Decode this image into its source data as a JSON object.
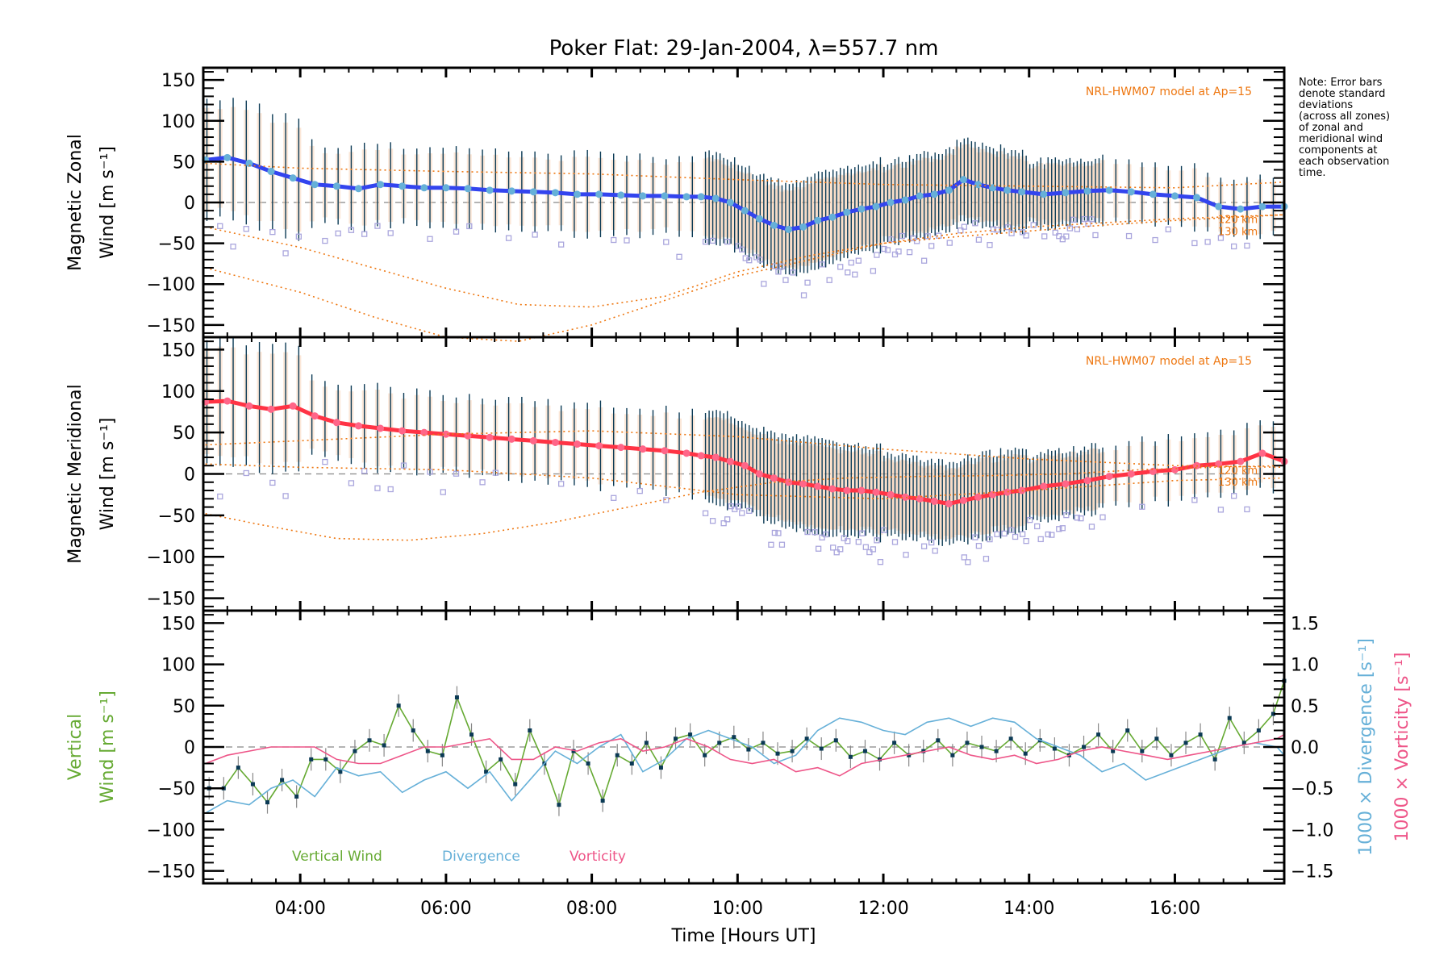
{
  "chart_data": [
    {
      "id": "zonal",
      "type": "line",
      "title": "Poker Flat: 29-Jan-2004, λ=557.7 nm",
      "ylabel_line1": "Magnetic Zonal",
      "ylabel_line2": "Wind [m s⁻¹]",
      "ylim": [
        -165,
        165
      ],
      "yticks": [
        -150,
        -100,
        -50,
        0,
        50,
        100,
        150
      ],
      "xlim": [
        2.67,
        17.5
      ],
      "annotation": "NRL-HWM07 model at Ap=15",
      "model_labels": [
        "120 km",
        "130 km"
      ],
      "zero_line": true,
      "series": [
        {
          "name": "Mean zonal wind",
          "color": "#3344ee",
          "x": [
            2.7,
            3.0,
            3.3,
            3.6,
            3.9,
            4.2,
            4.5,
            4.8,
            5.1,
            5.4,
            5.7,
            6.0,
            6.3,
            6.6,
            6.9,
            7.2,
            7.5,
            7.8,
            8.1,
            8.4,
            8.7,
            9.0,
            9.3,
            9.5,
            9.7,
            9.9,
            10.1,
            10.3,
            10.5,
            10.7,
            10.9,
            11.1,
            11.3,
            11.5,
            11.7,
            11.9,
            12.1,
            12.3,
            12.5,
            12.7,
            12.9,
            13.1,
            13.3,
            13.5,
            13.7,
            13.9,
            14.2,
            14.5,
            14.8,
            15.1,
            15.4,
            15.7,
            16.0,
            16.3,
            16.6,
            16.9,
            17.2,
            17.5
          ],
          "y": [
            52,
            55,
            48,
            38,
            30,
            22,
            20,
            17,
            22,
            20,
            18,
            18,
            17,
            15,
            14,
            13,
            12,
            10,
            10,
            9,
            8,
            8,
            7,
            7,
            5,
            0,
            -10,
            -20,
            -28,
            -33,
            -30,
            -22,
            -18,
            -12,
            -8,
            -5,
            0,
            3,
            8,
            10,
            15,
            28,
            22,
            18,
            15,
            13,
            10,
            12,
            14,
            15,
            13,
            10,
            8,
            6,
            -5,
            -8,
            -5,
            -5
          ]
        },
        {
          "name": "HWM07 120 km",
          "color": "#ee7711",
          "style": "dotted",
          "x": [
            2.7,
            4,
            6,
            8,
            10,
            12,
            14,
            16,
            17.5
          ],
          "y": [
            48,
            42,
            38,
            35,
            28,
            22,
            20,
            18,
            25
          ]
        },
        {
          "name": "HWM07 model lower",
          "color": "#ee7711",
          "style": "dotted",
          "x": [
            2.7,
            4,
            5,
            6,
            7,
            8,
            9,
            10,
            11,
            12,
            13,
            14,
            15,
            16,
            17.5
          ],
          "y": [
            -30,
            -55,
            -80,
            -105,
            -125,
            -128,
            -115,
            -85,
            -65,
            -50,
            -42,
            -35,
            -28,
            -22,
            -15
          ]
        },
        {
          "name": "HWM07 130 km",
          "color": "#ee7711",
          "style": "dotted",
          "x": [
            2.7,
            4,
            5,
            6,
            7,
            8,
            9,
            10,
            11,
            12,
            13,
            14,
            15,
            16,
            17.5
          ],
          "y": [
            -80,
            -110,
            -140,
            -165,
            -170,
            -150,
            -120,
            -90,
            -70,
            -50,
            -38,
            -30,
            -25,
            -20,
            -15
          ]
        }
      ],
      "errorbar_halfwidth_example": 60
    },
    {
      "id": "meridional",
      "type": "line",
      "ylabel_line1": "Magnetic Meridional",
      "ylabel_line2": "Wind [m s⁻¹]",
      "ylim": [
        -165,
        165
      ],
      "yticks": [
        -150,
        -100,
        -50,
        0,
        50,
        100,
        150
      ],
      "xlim": [
        2.67,
        17.5
      ],
      "annotation": "NRL-HWM07 model at Ap=15",
      "model_labels": [
        "120 km",
        "130 km"
      ],
      "zero_line": true,
      "series": [
        {
          "name": "Mean meridional wind",
          "color": "#ff3344",
          "x": [
            2.7,
            3.0,
            3.3,
            3.6,
            3.9,
            4.2,
            4.5,
            4.8,
            5.1,
            5.4,
            5.7,
            6.0,
            6.3,
            6.6,
            6.9,
            7.2,
            7.5,
            7.8,
            8.1,
            8.4,
            8.7,
            9.0,
            9.3,
            9.5,
            9.7,
            9.9,
            10.1,
            10.3,
            10.5,
            10.7,
            10.9,
            11.1,
            11.3,
            11.5,
            11.7,
            11.9,
            12.1,
            12.3,
            12.5,
            12.7,
            12.9,
            13.1,
            13.3,
            13.5,
            13.7,
            13.9,
            14.2,
            14.5,
            14.8,
            15.1,
            15.4,
            15.7,
            16.0,
            16.3,
            16.6,
            16.9,
            17.2,
            17.5
          ],
          "y": [
            87,
            88,
            82,
            78,
            82,
            70,
            62,
            58,
            55,
            52,
            50,
            48,
            46,
            44,
            42,
            40,
            38,
            36,
            34,
            32,
            30,
            28,
            25,
            22,
            20,
            15,
            10,
            0,
            -5,
            -10,
            -12,
            -15,
            -18,
            -20,
            -20,
            -22,
            -25,
            -28,
            -30,
            -33,
            -36,
            -32,
            -28,
            -25,
            -22,
            -20,
            -15,
            -12,
            -8,
            -3,
            0,
            3,
            5,
            10,
            12,
            15,
            25,
            15
          ]
        },
        {
          "name": "HWM07 120 km",
          "color": "#ee7711",
          "style": "dotted",
          "x": [
            2.7,
            4,
            6,
            8,
            10,
            12,
            14,
            16,
            17.5
          ],
          "y": [
            35,
            40,
            48,
            52,
            45,
            30,
            18,
            10,
            8
          ]
        },
        {
          "name": "HWM07 model upper",
          "color": "#ee7711",
          "style": "dotted",
          "x": [
            2.7,
            4,
            6,
            8,
            10,
            12,
            14,
            16,
            17.5
          ],
          "y": [
            12,
            8,
            5,
            -5,
            -25,
            -30,
            -20,
            -8,
            -5
          ]
        },
        {
          "name": "HWM07 130 km",
          "color": "#ee7711",
          "style": "dotted",
          "x": [
            2.7,
            3.5,
            4.5,
            5.5,
            6.5,
            7.5,
            8.5,
            9.5,
            10.5,
            11.5,
            12.5,
            13.5,
            14.5,
            15.5,
            16.5,
            17.5
          ],
          "y": [
            -48,
            -62,
            -78,
            -80,
            -72,
            -58,
            -40,
            -22,
            -10,
            -5,
            -3,
            -2,
            0,
            5,
            8,
            10
          ]
        }
      ]
    },
    {
      "id": "vertical",
      "type": "line",
      "ylabel_line1": "Vertical",
      "ylabel_line2": "Wind [m s⁻¹]",
      "ylabel_color": "#66aa33",
      "ylim": [
        -165,
        165
      ],
      "yticks": [
        -150,
        -100,
        -50,
        0,
        50,
        100,
        150
      ],
      "y2lim": [
        -1.65,
        1.65
      ],
      "y2ticks": [
        -1.5,
        -1.0,
        -0.5,
        0.0,
        0.5,
        1.0,
        1.5
      ],
      "y2tick_labels": [
        "−1.5",
        "−1.0",
        "−0.5",
        "0.0",
        "0.5",
        "1.0",
        "1.5"
      ],
      "y2label_divergence": "1000 × Divergence [s⁻¹]",
      "y2label_vorticity": "1000 × Vorticity [s⁻¹]",
      "xlim": [
        2.67,
        17.5
      ],
      "xticks": [
        4,
        6,
        8,
        10,
        12,
        14,
        16
      ],
      "xtick_labels": [
        "04:00",
        "06:00",
        "08:00",
        "10:00",
        "12:00",
        "14:00",
        "16:00"
      ],
      "xlabel": "Time [Hours UT]",
      "zero_line": true,
      "legend": [
        {
          "label": "Vertical Wind",
          "color": "#66aa33"
        },
        {
          "label": "Divergence",
          "color": "#66b0d8"
        },
        {
          "label": "Vorticity",
          "color": "#ee5588"
        }
      ],
      "series": [
        {
          "name": "Vertical Wind",
          "color": "#66aa33",
          "axis": "left",
          "markers": true,
          "x": [
            2.75,
            2.95,
            3.15,
            3.35,
            3.55,
            3.75,
            3.95,
            4.15,
            4.35,
            4.55,
            4.75,
            4.95,
            5.15,
            5.35,
            5.55,
            5.75,
            5.95,
            6.15,
            6.35,
            6.55,
            6.75,
            6.95,
            7.15,
            7.35,
            7.55,
            7.75,
            7.95,
            8.15,
            8.35,
            8.55,
            8.75,
            8.95,
            9.15,
            9.35,
            9.55,
            9.75,
            9.95,
            10.15,
            10.35,
            10.55,
            10.75,
            10.95,
            11.15,
            11.35,
            11.55,
            11.75,
            11.95,
            12.15,
            12.35,
            12.55,
            12.75,
            12.95,
            13.15,
            13.35,
            13.55,
            13.75,
            13.95,
            14.15,
            14.35,
            14.55,
            14.75,
            14.95,
            15.15,
            15.35,
            15.55,
            15.75,
            15.95,
            16.15,
            16.35,
            16.55,
            16.75,
            16.95,
            17.15,
            17.35,
            17.5
          ],
          "y": [
            -50,
            -50,
            -25,
            -45,
            -67,
            -40,
            -60,
            -15,
            -15,
            -30,
            -5,
            8,
            2,
            50,
            20,
            -5,
            -10,
            60,
            15,
            -30,
            -15,
            -45,
            20,
            -20,
            -70,
            -5,
            -20,
            -65,
            -10,
            -20,
            5,
            -25,
            10,
            15,
            -10,
            5,
            12,
            -3,
            5,
            -8,
            -5,
            10,
            -2,
            8,
            -12,
            -5,
            -15,
            5,
            -10,
            -5,
            8,
            -10,
            5,
            0,
            -5,
            10,
            -8,
            8,
            -2,
            -10,
            0,
            15,
            -5,
            20,
            -5,
            10,
            -10,
            5,
            15,
            -15,
            35,
            5,
            20,
            40,
            80
          ]
        },
        {
          "name": "Divergence",
          "color": "#66b0d8",
          "axis": "right",
          "x": [
            2.7,
            3.0,
            3.3,
            3.6,
            3.9,
            4.2,
            4.5,
            4.8,
            5.1,
            5.4,
            5.7,
            6.0,
            6.3,
            6.6,
            6.9,
            7.2,
            7.5,
            7.8,
            8.1,
            8.4,
            8.7,
            9.0,
            9.3,
            9.6,
            9.9,
            10.2,
            10.5,
            10.8,
            11.1,
            11.4,
            11.7,
            12.0,
            12.3,
            12.6,
            12.9,
            13.2,
            13.5,
            13.8,
            14.1,
            14.4,
            14.7,
            15.0,
            15.3,
            15.6,
            15.9,
            16.2,
            16.5,
            16.8,
            17.1,
            17.4,
            17.5
          ],
          "y": [
            -0.8,
            -0.65,
            -0.7,
            -0.5,
            -0.4,
            -0.6,
            -0.25,
            -0.35,
            -0.3,
            -0.55,
            -0.4,
            -0.3,
            -0.5,
            -0.3,
            -0.65,
            -0.35,
            -0.05,
            -0.2,
            0.0,
            0.15,
            -0.3,
            -0.15,
            0.1,
            0.2,
            0.1,
            0.0,
            -0.2,
            -0.1,
            0.2,
            0.35,
            0.3,
            0.2,
            0.15,
            0.3,
            0.35,
            0.25,
            0.35,
            0.3,
            0.1,
            0.0,
            -0.1,
            -0.3,
            -0.2,
            -0.4,
            -0.3,
            -0.2,
            -0.1,
            0.0,
            0.05,
            0.0,
            -0.1
          ]
        },
        {
          "name": "Vorticity",
          "color": "#ee5588",
          "axis": "right",
          "x": [
            2.7,
            3.0,
            3.3,
            3.6,
            3.9,
            4.2,
            4.5,
            4.8,
            5.1,
            5.4,
            5.7,
            6.0,
            6.3,
            6.6,
            6.9,
            7.2,
            7.5,
            7.8,
            8.1,
            8.4,
            8.7,
            9.0,
            9.3,
            9.6,
            9.9,
            10.2,
            10.5,
            10.8,
            11.1,
            11.4,
            11.7,
            12.0,
            12.3,
            12.6,
            12.9,
            13.2,
            13.5,
            13.8,
            14.1,
            14.4,
            14.7,
            15.0,
            15.3,
            15.6,
            15.9,
            16.2,
            16.5,
            16.8,
            17.1,
            17.4,
            17.5
          ],
          "y": [
            -0.2,
            -0.1,
            -0.05,
            0.0,
            0.0,
            0.0,
            -0.15,
            -0.2,
            -0.2,
            -0.1,
            0.0,
            0.0,
            0.05,
            0.1,
            -0.15,
            -0.15,
            0.0,
            -0.05,
            0.05,
            0.1,
            -0.05,
            0.0,
            0.1,
            0.0,
            -0.15,
            -0.2,
            -0.15,
            -0.3,
            -0.25,
            -0.35,
            -0.2,
            -0.15,
            -0.1,
            -0.05,
            0.0,
            -0.1,
            -0.15,
            -0.1,
            -0.2,
            -0.15,
            -0.05,
            0.0,
            -0.05,
            -0.1,
            -0.15,
            -0.1,
            -0.05,
            0.0,
            0.05,
            0.1,
            0.15
          ]
        }
      ]
    }
  ],
  "note": "Note: Error bars\ndenote standard\ndeviations\n(across all zones)\nof zonal and\nmeridional wind\ncomponents at\neach observation\ntime."
}
